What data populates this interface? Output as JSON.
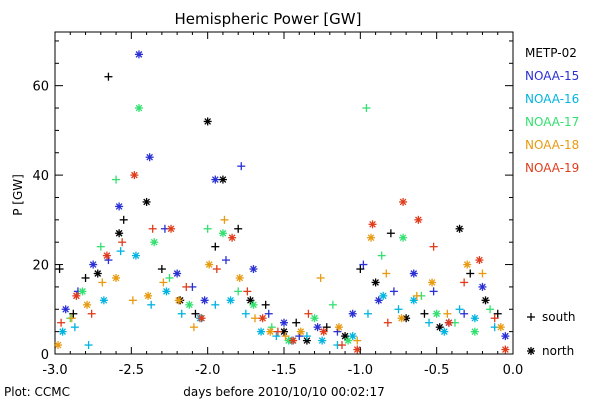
{
  "chart_data": {
    "type": "scatter",
    "title": "Hemispheric Power [GW]",
    "xlabel": "days before 2010/10/10 00:02:17",
    "ylabel": "P [GW]",
    "xlim": [
      -3.0,
      0.0
    ],
    "ylim": [
      0,
      72
    ],
    "x_ticks": [
      -3.0,
      -2.5,
      -2.0,
      -1.5,
      -1.0,
      -0.5,
      0.0
    ],
    "x_tick_labels": [
      "-3.0",
      "-2.5",
      "-2.0",
      "-1.5",
      "-1.0",
      "-0.5",
      "0.0"
    ],
    "y_ticks": [
      0,
      20,
      40,
      60
    ],
    "y_tick_labels": [
      "0",
      "20",
      "40",
      "60"
    ],
    "grid": false,
    "legend_position": "right",
    "marker_legend": [
      {
        "symbol": "+",
        "label": "south"
      },
      {
        "symbol": "*",
        "label": "north"
      }
    ],
    "footer": "Plot: CCMC",
    "series": [
      {
        "name": "METP-02",
        "color": "#000000",
        "points": [
          [
            -2.97,
            19,
            "s"
          ],
          [
            -2.88,
            9,
            "s"
          ],
          [
            -2.8,
            17,
            "s"
          ],
          [
            -2.72,
            18,
            "n"
          ],
          [
            -2.65,
            62,
            "s"
          ],
          [
            -2.58,
            27,
            "n"
          ],
          [
            -2.55,
            30,
            "s"
          ],
          [
            -2.4,
            34,
            "n"
          ],
          [
            -2.3,
            19,
            "s"
          ],
          [
            -2.18,
            12,
            "n"
          ],
          [
            -2.08,
            9,
            "s"
          ],
          [
            -2.0,
            52,
            "n"
          ],
          [
            -1.95,
            24,
            "s"
          ],
          [
            -1.9,
            39,
            "n"
          ],
          [
            -1.8,
            28,
            "s"
          ],
          [
            -1.72,
            12,
            "n"
          ],
          [
            -1.62,
            11,
            "s"
          ],
          [
            -1.5,
            5,
            "n"
          ],
          [
            -1.42,
            7,
            "s"
          ],
          [
            -1.35,
            3,
            "n"
          ],
          [
            -1.22,
            6,
            "s"
          ],
          [
            -1.1,
            4,
            "n"
          ],
          [
            -1.0,
            19,
            "s"
          ],
          [
            -0.9,
            16,
            "n"
          ],
          [
            -0.8,
            27,
            "s"
          ],
          [
            -0.7,
            8,
            "n"
          ],
          [
            -0.58,
            9,
            "s"
          ],
          [
            -0.48,
            6,
            "n"
          ],
          [
            -0.35,
            28,
            "n"
          ],
          [
            -0.28,
            18,
            "s"
          ],
          [
            -0.18,
            12,
            "n"
          ],
          [
            -0.1,
            9,
            "s"
          ]
        ]
      },
      {
        "name": "NOAA-15",
        "color": "#2a30d4",
        "points": [
          [
            -2.93,
            10,
            "n"
          ],
          [
            -2.85,
            14,
            "s"
          ],
          [
            -2.75,
            20,
            "n"
          ],
          [
            -2.65,
            21,
            "s"
          ],
          [
            -2.58,
            33,
            "n"
          ],
          [
            -2.45,
            67,
            "n"
          ],
          [
            -2.38,
            44,
            "n"
          ],
          [
            -2.28,
            28,
            "s"
          ],
          [
            -2.2,
            18,
            "n"
          ],
          [
            -2.1,
            15,
            "s"
          ],
          [
            -2.02,
            12,
            "n"
          ],
          [
            -1.95,
            39,
            "n"
          ],
          [
            -1.88,
            21,
            "s"
          ],
          [
            -1.78,
            42,
            "s"
          ],
          [
            -1.7,
            19,
            "n"
          ],
          [
            -1.6,
            9,
            "s"
          ],
          [
            -1.5,
            7,
            "n"
          ],
          [
            -1.4,
            4,
            "s"
          ],
          [
            -1.28,
            6,
            "n"
          ],
          [
            -1.15,
            5,
            "s"
          ],
          [
            -1.05,
            9,
            "n"
          ],
          [
            -0.98,
            20,
            "s"
          ],
          [
            -0.88,
            12,
            "n"
          ],
          [
            -0.78,
            14,
            "s"
          ],
          [
            -0.65,
            18,
            "n"
          ],
          [
            -0.52,
            14,
            "s"
          ],
          [
            -0.42,
            7,
            "n"
          ],
          [
            -0.32,
            9,
            "s"
          ],
          [
            -0.2,
            15,
            "n"
          ],
          [
            -0.05,
            4,
            "n"
          ]
        ]
      },
      {
        "name": "NOAA-16",
        "color": "#00b4e0",
        "points": [
          [
            -2.95,
            5,
            "n"
          ],
          [
            -2.87,
            6,
            "s"
          ],
          [
            -2.78,
            2,
            "s"
          ],
          [
            -2.68,
            12,
            "n"
          ],
          [
            -2.57,
            23,
            "s"
          ],
          [
            -2.47,
            22,
            "n"
          ],
          [
            -2.37,
            11,
            "s"
          ],
          [
            -2.27,
            14,
            "n"
          ],
          [
            -2.17,
            9,
            "s"
          ],
          [
            -2.05,
            8,
            "n"
          ],
          [
            -1.95,
            11,
            "s"
          ],
          [
            -1.85,
            12,
            "n"
          ],
          [
            -1.75,
            9,
            "s"
          ],
          [
            -1.65,
            5,
            "n"
          ],
          [
            -1.55,
            4,
            "s"
          ],
          [
            -1.45,
            3,
            "n"
          ],
          [
            -1.35,
            4,
            "s"
          ],
          [
            -1.25,
            3,
            "n"
          ],
          [
            -1.15,
            2,
            "s"
          ],
          [
            -1.05,
            4,
            "n"
          ],
          [
            -0.95,
            9,
            "s"
          ],
          [
            -0.85,
            13,
            "n"
          ],
          [
            -0.75,
            10,
            "s"
          ],
          [
            -0.65,
            12,
            "n"
          ],
          [
            -0.55,
            7,
            "s"
          ],
          [
            -0.45,
            5,
            "n"
          ],
          [
            -0.35,
            10,
            "s"
          ],
          [
            -0.25,
            8,
            "n"
          ],
          [
            -0.12,
            6,
            "s"
          ]
        ]
      },
      {
        "name": "NOAA-17",
        "color": "#33e070",
        "points": [
          [
            -2.9,
            8,
            "s"
          ],
          [
            -2.82,
            14,
            "n"
          ],
          [
            -2.7,
            24,
            "s"
          ],
          [
            -2.6,
            39,
            "s"
          ],
          [
            -2.45,
            55,
            "n"
          ],
          [
            -2.35,
            25,
            "n"
          ],
          [
            -2.25,
            17,
            "s"
          ],
          [
            -2.12,
            11,
            "n"
          ],
          [
            -2.0,
            28,
            "s"
          ],
          [
            -1.9,
            27,
            "n"
          ],
          [
            -1.8,
            14,
            "s"
          ],
          [
            -1.7,
            11,
            "n"
          ],
          [
            -1.58,
            6,
            "s"
          ],
          [
            -1.47,
            3,
            "n"
          ],
          [
            -1.3,
            8,
            "n"
          ],
          [
            -1.18,
            11,
            "s"
          ],
          [
            -1.08,
            3,
            "n"
          ],
          [
            -0.96,
            55,
            "s"
          ],
          [
            -0.86,
            22,
            "s"
          ],
          [
            -0.72,
            26,
            "n"
          ],
          [
            -0.6,
            13,
            "s"
          ],
          [
            -0.5,
            9,
            "n"
          ],
          [
            -0.38,
            7,
            "s"
          ],
          [
            -0.25,
            5,
            "n"
          ],
          [
            -0.15,
            10,
            "s"
          ]
        ]
      },
      {
        "name": "NOAA-18",
        "color": "#e89a10",
        "points": [
          [
            -2.98,
            2,
            "n"
          ],
          [
            -2.89,
            8,
            "s"
          ],
          [
            -2.79,
            11,
            "n"
          ],
          [
            -2.69,
            16,
            "s"
          ],
          [
            -2.6,
            17,
            "n"
          ],
          [
            -2.49,
            12,
            "s"
          ],
          [
            -2.39,
            13,
            "n"
          ],
          [
            -2.29,
            16,
            "s"
          ],
          [
            -2.19,
            12,
            "n"
          ],
          [
            -2.09,
            6,
            "s"
          ],
          [
            -1.99,
            20,
            "n"
          ],
          [
            -1.89,
            30,
            "s"
          ],
          [
            -1.79,
            17,
            "n"
          ],
          [
            -1.69,
            8,
            "s"
          ],
          [
            -1.59,
            5,
            "n"
          ],
          [
            -1.49,
            4,
            "s"
          ],
          [
            -1.39,
            5,
            "n"
          ],
          [
            -1.26,
            17,
            "s"
          ],
          [
            -1.14,
            6,
            "n"
          ],
          [
            -1.02,
            3,
            "s"
          ],
          [
            -0.93,
            26,
            "n"
          ],
          [
            -0.83,
            18,
            "s"
          ],
          [
            -0.73,
            8,
            "n"
          ],
          [
            -0.63,
            13,
            "s"
          ],
          [
            -0.53,
            16,
            "n"
          ],
          [
            -0.43,
            9,
            "s"
          ],
          [
            -0.3,
            20,
            "n"
          ],
          [
            -0.2,
            18,
            "s"
          ],
          [
            -0.08,
            6,
            "n"
          ]
        ]
      },
      {
        "name": "NOAA-19",
        "color": "#e03c1c",
        "points": [
          [
            -2.96,
            7,
            "s"
          ],
          [
            -2.86,
            13,
            "n"
          ],
          [
            -2.76,
            9,
            "s"
          ],
          [
            -2.66,
            22,
            "n"
          ],
          [
            -2.56,
            25,
            "s"
          ],
          [
            -2.48,
            40,
            "n"
          ],
          [
            -2.36,
            28,
            "s"
          ],
          [
            -2.24,
            28,
            "n"
          ],
          [
            -2.14,
            15,
            "s"
          ],
          [
            -2.04,
            8,
            "n"
          ],
          [
            -1.94,
            19,
            "s"
          ],
          [
            -1.84,
            26,
            "n"
          ],
          [
            -1.74,
            14,
            "s"
          ],
          [
            -1.64,
            8,
            "n"
          ],
          [
            -1.54,
            5,
            "s"
          ],
          [
            -1.44,
            3,
            "n"
          ],
          [
            -1.34,
            9,
            "s"
          ],
          [
            -1.24,
            5,
            "n"
          ],
          [
            -1.12,
            2,
            "s"
          ],
          [
            -1.02,
            1,
            "n"
          ],
          [
            -0.92,
            29,
            "n"
          ],
          [
            -0.82,
            7,
            "s"
          ],
          [
            -0.72,
            34,
            "n"
          ],
          [
            -0.62,
            30,
            "n"
          ],
          [
            -0.52,
            24,
            "s"
          ],
          [
            -0.42,
            7,
            "n"
          ],
          [
            -0.32,
            16,
            "s"
          ],
          [
            -0.22,
            21,
            "n"
          ],
          [
            -0.12,
            8,
            "s"
          ],
          [
            -0.05,
            1,
            "n"
          ]
        ]
      }
    ]
  }
}
